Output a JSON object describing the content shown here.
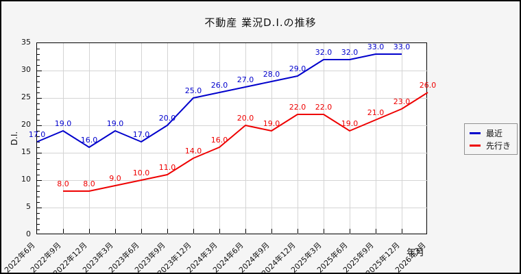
{
  "chart_data": {
    "type": "line",
    "title": "不動産 業況D.I.の推移",
    "ylabel": "D.I.",
    "xlabel": "年月",
    "ylim": [
      0,
      35
    ],
    "ytick_major_step": 5,
    "ytick_minor_step": 1,
    "grid": true,
    "legend_position": "right-outside",
    "categories": [
      "2022年6月",
      "2022年9月",
      "2022年12月",
      "2023年3月",
      "2023年6月",
      "2023年9月",
      "2023年12月",
      "2024年3月",
      "2024年6月",
      "2024年9月",
      "2024年12月",
      "2025年3月",
      "2025年6月",
      "2025年9月",
      "2025年12月",
      "2026年3月"
    ],
    "series": [
      {
        "name": "最近",
        "color": "#0000cc",
        "start_index": 0,
        "values": [
          17,
          19,
          16,
          19,
          17,
          20,
          25,
          26,
          27,
          28,
          29,
          32,
          32,
          33,
          33
        ],
        "point_labels": [
          "17.0",
          "19.0",
          "16.0",
          "19.0",
          "17.0",
          "20.0",
          "25.0",
          "26.0",
          "27.0",
          "28.0",
          "29.0",
          "32.0",
          "32.0",
          "33.0",
          "33.0"
        ]
      },
      {
        "name": "先行き",
        "color": "#ee0000",
        "start_index": 1,
        "values": [
          8,
          8,
          9,
          10,
          11,
          14,
          16,
          20,
          19,
          22,
          22,
          19,
          21,
          23,
          26
        ],
        "point_labels": [
          "8.0",
          "8.0",
          "9.0",
          "10.0",
          "11.0",
          "14.0",
          "16.0",
          "20.0",
          "19.0",
          "22.0",
          "22.0",
          "19.0",
          "21.0",
          "23.0",
          "26.0"
        ]
      }
    ]
  },
  "colors": {
    "background": "#f5f5f5",
    "plot_background": "#ffffff",
    "grid": "#d4d4d4",
    "border": "#000000"
  }
}
